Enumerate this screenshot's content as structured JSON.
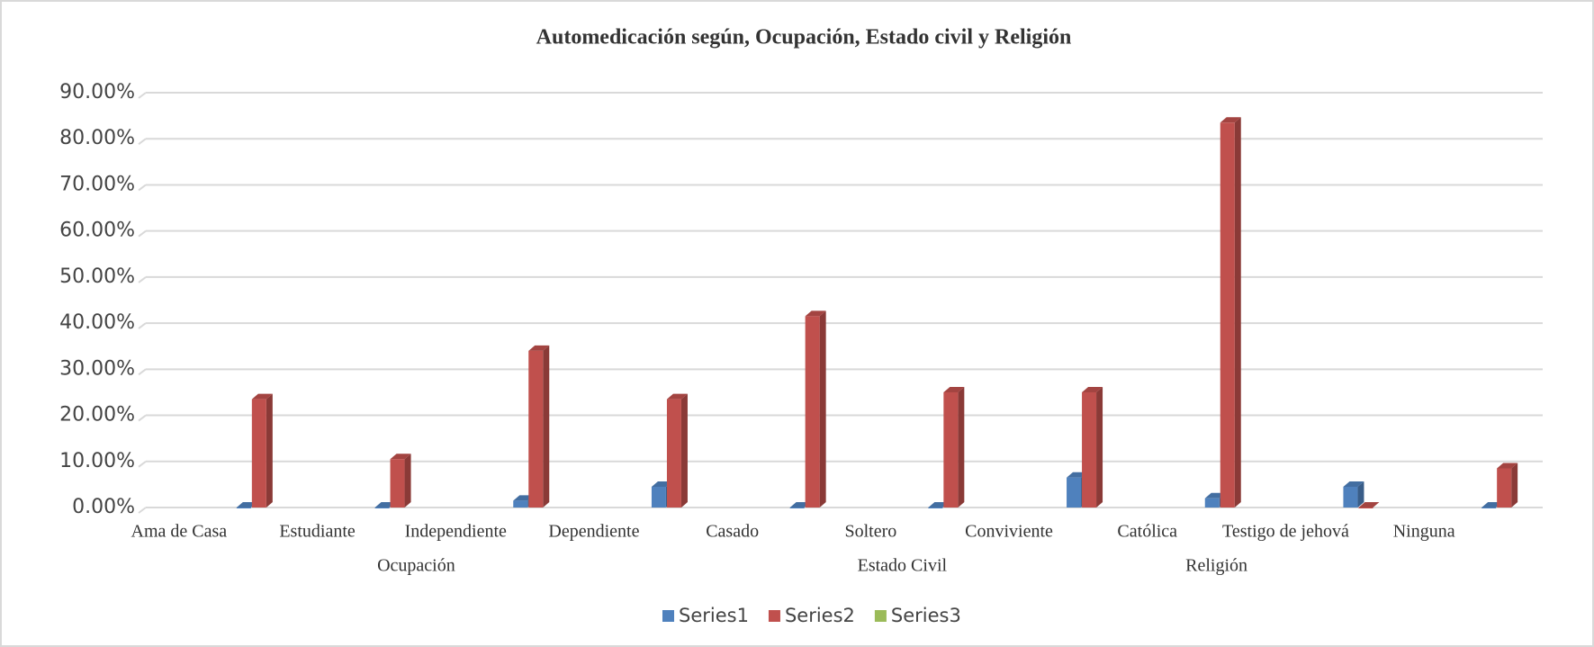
{
  "chart_data": {
    "type": "bar",
    "title": "Automedicación según, Ocupación, Estado civil y Religión",
    "categories": [
      "Ama de Casa",
      "Estudiante",
      "Independiente",
      "Dependiente",
      "Casado",
      "Soltero",
      "Conviviente",
      "Católica",
      "Testigo de jehová",
      "Ninguna"
    ],
    "groups": [
      {
        "name": "Ocupación",
        "size": 4
      },
      {
        "name": "Estado Civil",
        "size": 3
      },
      {
        "name": "Religión",
        "size": 3
      }
    ],
    "series": [
      {
        "name": "Series1",
        "color": "#4f81bd",
        "values": [
          0,
          0,
          1.5,
          4.5,
          0,
          0,
          6.5,
          2,
          4.5,
          0
        ]
      },
      {
        "name": "Series2",
        "color": "#c0504d",
        "values": [
          23.5,
          10.5,
          34,
          23.5,
          41.5,
          25,
          25,
          83.5,
          0,
          8.5
        ]
      },
      {
        "name": "Series3",
        "color": "#9bbb59",
        "values": [
          null,
          null,
          null,
          null,
          null,
          null,
          null,
          null,
          null,
          null
        ]
      }
    ],
    "ylim": [
      0,
      90
    ],
    "yticks": [
      {
        "value": 0,
        "label": "0.00%"
      },
      {
        "value": 10,
        "label": "10.00%"
      },
      {
        "value": 20,
        "label": "20.00%"
      },
      {
        "value": 30,
        "label": "30.00%"
      },
      {
        "value": 40,
        "label": "40.00%"
      },
      {
        "value": 50,
        "label": "50.00%"
      },
      {
        "value": 60,
        "label": "60.00%"
      },
      {
        "value": 70,
        "label": "70.00%"
      },
      {
        "value": 80,
        "label": "80.00%"
      },
      {
        "value": 90,
        "label": "90.00%"
      }
    ],
    "grid": true,
    "legend": "bottom"
  }
}
